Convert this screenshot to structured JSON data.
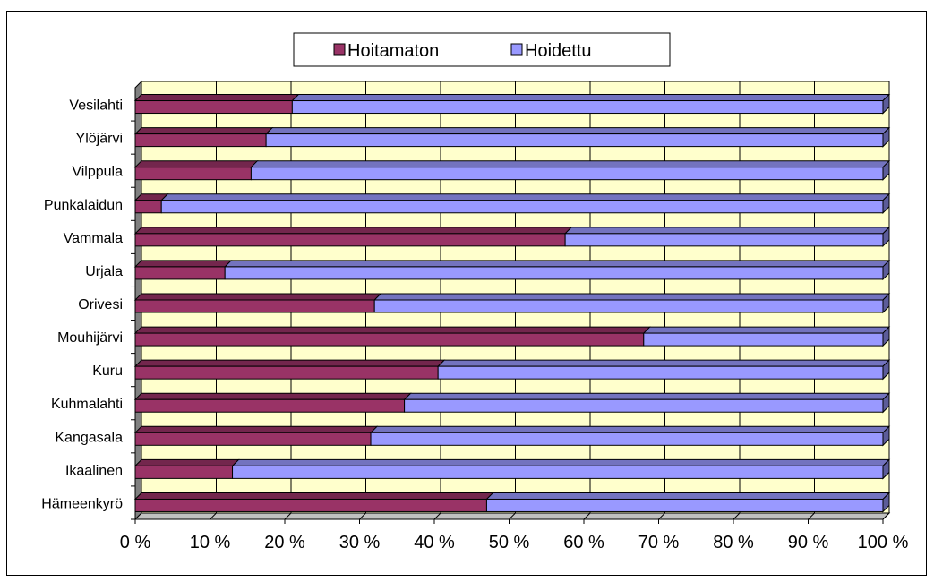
{
  "chart_data": {
    "type": "bar",
    "orientation": "horizontal",
    "stacked": "percent",
    "categories": [
      "Hämeenkyrö",
      "Ikaalinen",
      "Kangasala",
      "Kuhmalahti",
      "Kuru",
      "Mouhijärvi",
      "Orivesi",
      "Urjala",
      "Vammala",
      "Punkalaidun",
      "Vilppula",
      "Ylöjärvi",
      "Vesilahti"
    ],
    "series": [
      {
        "name": "Hoitamaton",
        "color": "#993366",
        "values": [
          47,
          13,
          31.5,
          36,
          40.5,
          68,
          32,
          12,
          57.5,
          3.5,
          15.5,
          17.5,
          21
        ]
      },
      {
        "name": "Hoidettu",
        "color": "#9999ff",
        "values": [
          53,
          87,
          68.5,
          64,
          59.5,
          32,
          68,
          88,
          42.5,
          96.5,
          84.5,
          82.5,
          79
        ]
      }
    ],
    "xlim": [
      0,
      100
    ],
    "x_ticks": [
      "0 %",
      "10 %",
      "20 %",
      "30 %",
      "40 %",
      "50 %",
      "60 %",
      "70 %",
      "80 %",
      "90 %",
      "100 %"
    ],
    "grid": true,
    "legend_position": "top",
    "plot_background": "#ffffcc",
    "three_d": true
  }
}
